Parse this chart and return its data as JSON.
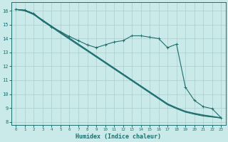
{
  "xlabel": "Humidex (Indice chaleur)",
  "xlim": [
    -0.5,
    23.5
  ],
  "ylim": [
    7.8,
    16.6
  ],
  "xticks": [
    0,
    1,
    2,
    3,
    4,
    5,
    6,
    7,
    8,
    9,
    10,
    11,
    12,
    13,
    14,
    15,
    16,
    17,
    18,
    19,
    20,
    21,
    22,
    23
  ],
  "yticks": [
    8,
    9,
    10,
    11,
    12,
    13,
    14,
    15,
    16
  ],
  "bg_color": "#caeaea",
  "line_color": "#1e6e6e",
  "grid_color": "#b8d8d8",
  "line_marked": [
    [
      0,
      16.1
    ],
    [
      1,
      16.05
    ],
    [
      2,
      15.8
    ],
    [
      3,
      15.3
    ],
    [
      4,
      14.85
    ],
    [
      5,
      14.5
    ],
    [
      6,
      14.15
    ],
    [
      7,
      13.85
    ],
    [
      8,
      13.55
    ],
    [
      9,
      13.35
    ],
    [
      10,
      13.55
    ],
    [
      11,
      13.75
    ],
    [
      12,
      13.85
    ],
    [
      13,
      14.2
    ],
    [
      14,
      14.2
    ],
    [
      15,
      14.1
    ],
    [
      16,
      14.0
    ],
    [
      17,
      13.35
    ],
    [
      18,
      13.6
    ],
    [
      19,
      10.5
    ],
    [
      20,
      9.55
    ],
    [
      21,
      9.1
    ],
    [
      22,
      8.95
    ],
    [
      23,
      8.3
    ]
  ],
  "line_a": [
    [
      0,
      16.1
    ],
    [
      1,
      16.0
    ],
    [
      2,
      15.72
    ],
    [
      3,
      15.25
    ],
    [
      4,
      14.82
    ],
    [
      5,
      14.38
    ],
    [
      6,
      13.95
    ],
    [
      7,
      13.52
    ],
    [
      8,
      13.1
    ],
    [
      9,
      12.67
    ],
    [
      10,
      12.24
    ],
    [
      11,
      11.81
    ],
    [
      12,
      11.38
    ],
    [
      13,
      10.95
    ],
    [
      14,
      10.52
    ],
    [
      15,
      10.09
    ],
    [
      16,
      9.66
    ],
    [
      17,
      9.23
    ],
    [
      18,
      8.95
    ],
    [
      19,
      8.7
    ],
    [
      20,
      8.55
    ],
    [
      21,
      8.42
    ],
    [
      22,
      8.35
    ],
    [
      23,
      8.28
    ]
  ],
  "line_b": [
    [
      0,
      16.1
    ],
    [
      1,
      16.0
    ],
    [
      2,
      15.75
    ],
    [
      3,
      15.3
    ],
    [
      4,
      14.87
    ],
    [
      5,
      14.44
    ],
    [
      6,
      14.01
    ],
    [
      7,
      13.58
    ],
    [
      8,
      13.15
    ],
    [
      9,
      12.72
    ],
    [
      10,
      12.29
    ],
    [
      11,
      11.86
    ],
    [
      12,
      11.43
    ],
    [
      13,
      11.0
    ],
    [
      14,
      10.57
    ],
    [
      15,
      10.14
    ],
    [
      16,
      9.71
    ],
    [
      17,
      9.28
    ],
    [
      18,
      9.0
    ],
    [
      19,
      8.75
    ],
    [
      20,
      8.6
    ],
    [
      21,
      8.47
    ],
    [
      22,
      8.38
    ],
    [
      23,
      8.28
    ]
  ],
  "line_c": [
    [
      0,
      16.1
    ],
    [
      1,
      16.05
    ],
    [
      2,
      15.78
    ],
    [
      3,
      15.33
    ],
    [
      4,
      14.9
    ],
    [
      5,
      14.47
    ],
    [
      6,
      14.04
    ],
    [
      7,
      13.61
    ],
    [
      8,
      13.18
    ],
    [
      9,
      12.75
    ],
    [
      10,
      12.32
    ],
    [
      11,
      11.89
    ],
    [
      12,
      11.46
    ],
    [
      13,
      11.03
    ],
    [
      14,
      10.6
    ],
    [
      15,
      10.17
    ],
    [
      16,
      9.74
    ],
    [
      17,
      9.31
    ],
    [
      18,
      9.02
    ],
    [
      19,
      8.77
    ],
    [
      20,
      8.62
    ],
    [
      21,
      8.5
    ],
    [
      22,
      8.4
    ],
    [
      23,
      8.3
    ]
  ]
}
